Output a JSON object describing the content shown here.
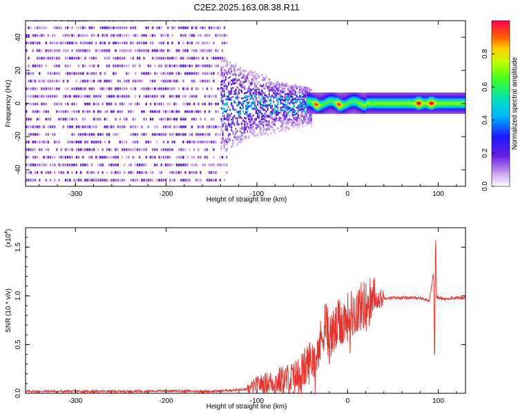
{
  "figure": {
    "title": "C2E2.2025.163.08.38.R11"
  },
  "chart_data": [
    {
      "type": "heatmap",
      "title": "C2E2.2025.163.08.38.R11",
      "xlabel": "Height of straight line (km)",
      "ylabel": "Frequency (Hz)",
      "xlim": [
        -355,
        130
      ],
      "ylim": [
        -50,
        50
      ],
      "x_ticks": [
        -300,
        -200,
        -100,
        0,
        100
      ],
      "y_ticks": [
        -40,
        -20,
        0,
        20,
        40
      ],
      "colorbar": {
        "label": "Normalized spectral amplitude",
        "range": [
          0,
          1
        ],
        "ticks": [
          "0.0",
          "0.2",
          "0.4",
          "0.6",
          "0.8"
        ]
      },
      "features": {
        "noise_region_x": [
          -355,
          -140
        ],
        "signal_onset_x": -140,
        "ridge_center_hz": 0,
        "peak_x": [
          -35,
          -10,
          78,
          92
        ]
      }
    },
    {
      "type": "line",
      "xlabel": "Height of straight line (km)",
      "ylabel": "SNR (10 * v/v)",
      "y_multiplier": "(x10",
      "y_multiplier_exp": "4",
      "y_multiplier_close": ")",
      "xlim": [
        -355,
        130
      ],
      "ylim": [
        0,
        1.7
      ],
      "x_ticks": [
        -300,
        -200,
        -100,
        0,
        100
      ],
      "y_ticks": [
        "0.0",
        "0.5",
        "1.0",
        "1.5"
      ],
      "series": [
        {
          "color": "#e8322c",
          "x": [
            -355,
            -300,
            -250,
            -200,
            -150,
            -110,
            -100,
            -80,
            -60,
            -50,
            -40,
            -30,
            -25,
            -20,
            -10,
            0,
            10,
            20,
            30,
            40,
            60,
            80,
            90,
            95,
            96,
            97,
            98,
            100,
            110,
            120,
            130
          ],
          "y": [
            0.02,
            0.02,
            0.02,
            0.025,
            0.02,
            0.04,
            0.09,
            0.12,
            0.15,
            0.22,
            0.35,
            0.5,
            0.75,
            0.55,
            0.7,
            0.78,
            0.86,
            0.92,
            0.96,
            0.98,
            0.98,
            0.98,
            0.95,
            1.25,
            0.2,
            1.7,
            0.99,
            0.98,
            0.97,
            0.98,
            0.98
          ]
        }
      ]
    }
  ]
}
